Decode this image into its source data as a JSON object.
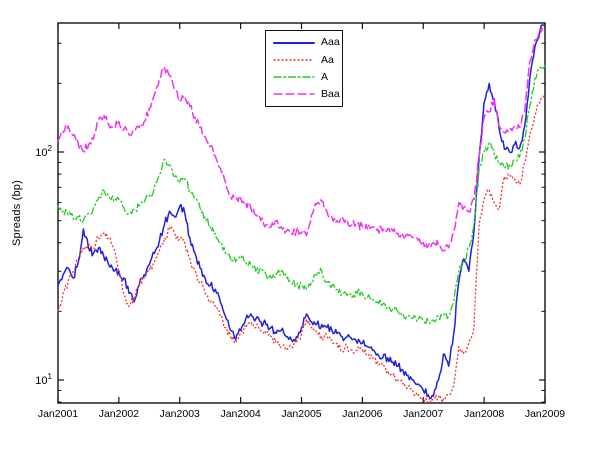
{
  "chart_data": {
    "type": "line",
    "title": "",
    "xlabel": "",
    "ylabel": "Spreads (bp)",
    "yscale": "log",
    "ylim": [
      8,
      370
    ],
    "grid": false,
    "legend_position": "upper-right-inside",
    "x_unit": "monthly, Jan2001 - Jan2009",
    "x_tick_labels": [
      "Jan2001",
      "Jan2002",
      "Jan2003",
      "Jan2004",
      "Jan2005",
      "Jan2006",
      "Jan2007",
      "Jan2008",
      "Jan2009"
    ],
    "y_major_ticks": [
      10,
      100
    ],
    "y_major_tick_labels": [
      {
        "base": "10",
        "exp": "1",
        "value": 10
      },
      {
        "base": "10",
        "exp": "2",
        "value": 100
      }
    ],
    "y_minor_ticks": [
      8,
      9,
      20,
      30,
      40,
      50,
      60,
      70,
      80,
      90,
      200,
      300
    ],
    "series": [
      {
        "name": "Aaa",
        "color": "#2020dd",
        "line_style": "solid",
        "values": [
          26,
          29,
          31,
          28,
          33,
          46,
          38,
          36,
          38,
          35,
          32,
          30,
          30,
          28,
          24,
          22,
          26,
          29,
          32,
          36,
          41,
          48,
          55,
          52,
          58,
          54,
          42,
          36,
          31,
          28,
          26,
          25,
          22,
          19,
          16.5,
          15,
          16.5,
          18.5,
          19.5,
          18.5,
          18,
          17.5,
          17,
          16,
          16.5,
          15.5,
          15,
          15.5,
          17,
          19.5,
          18,
          17.5,
          17.5,
          17,
          16.5,
          16,
          15.5,
          15.5,
          15,
          14.5,
          14.5,
          14,
          13.5,
          13,
          12.5,
          12.5,
          12,
          11.5,
          11,
          10.5,
          10,
          9.6,
          9,
          8.6,
          8.5,
          10,
          13,
          11.5,
          16,
          27,
          34,
          30,
          45,
          95,
          165,
          200,
          170,
          125,
          103,
          100,
          108,
          104,
          130,
          210,
          290,
          340,
          360
        ]
      },
      {
        "name": "Aa",
        "color": "#ee3333",
        "line_style": "dotted",
        "values": [
          20,
          24,
          27,
          30,
          34,
          38,
          40,
          38,
          42,
          44,
          42,
          38,
          30,
          24,
          21,
          23,
          26,
          28,
          30,
          33,
          37,
          42,
          46,
          44,
          42,
          40,
          34,
          30,
          27,
          24,
          22,
          21,
          19,
          17,
          15.5,
          14.5,
          16,
          17,
          17.5,
          17,
          16.5,
          16,
          15.5,
          14.5,
          14,
          13.5,
          14,
          14.5,
          16,
          18.5,
          17,
          16,
          15.5,
          15.5,
          15,
          14.5,
          13.5,
          14,
          13.5,
          13.5,
          13.5,
          13,
          12.5,
          12,
          11.5,
          11,
          10.5,
          10,
          9.6,
          9.2,
          8.9,
          8.6,
          8.3,
          8.1,
          8.2,
          8.4,
          8.3,
          8.6,
          9.5,
          14,
          13,
          14.5,
          17,
          48,
          62,
          68,
          60,
          56,
          78,
          80,
          76,
          72,
          90,
          120,
          145,
          165,
          172
        ]
      },
      {
        "name": "A",
        "color": "#22cc22",
        "line_style": "dashdot",
        "values": [
          58,
          55,
          53,
          51,
          52,
          50,
          54,
          57,
          63,
          68,
          64,
          61,
          62,
          57,
          54,
          56,
          58,
          60,
          64,
          70,
          80,
          93,
          88,
          78,
          74,
          76,
          68,
          62,
          57,
          52,
          47,
          44,
          40,
          36,
          34,
          33,
          34,
          33,
          32,
          30,
          31,
          29,
          28,
          29,
          30,
          28,
          27,
          26,
          26,
          25,
          27,
          29,
          30,
          27,
          26,
          25,
          24,
          23.5,
          23,
          24,
          24,
          23,
          22.5,
          22,
          21.5,
          21,
          20.5,
          20,
          19.5,
          19,
          18.7,
          18.4,
          18.2,
          18,
          18.3,
          19,
          19.5,
          19,
          22,
          30,
          33,
          38,
          48,
          85,
          100,
          110,
          98,
          90,
          85,
          88,
          92,
          95,
          115,
          160,
          210,
          235,
          240
        ]
      },
      {
        "name": "Baa",
        "color": "#ee33ee",
        "line_style": "dashed",
        "values": [
          112,
          122,
          130,
          118,
          108,
          101,
          107,
          114,
          138,
          146,
          132,
          128,
          136,
          126,
          119,
          123,
          128,
          136,
          155,
          178,
          210,
          234,
          216,
          188,
          168,
          175,
          158,
          142,
          128,
          117,
          106,
          96,
          85,
          74,
          64,
          62,
          63,
          60,
          57,
          53,
          50,
          48,
          47,
          50,
          47,
          45,
          44,
          45,
          44,
          43,
          53,
          59,
          61,
          55,
          52,
          50,
          52,
          50,
          48,
          48,
          47,
          46,
          47,
          46,
          45,
          46,
          45,
          44,
          43,
          43,
          42,
          41,
          40,
          39,
          40,
          39,
          37,
          38,
          45,
          60,
          57,
          55,
          62,
          95,
          142,
          150,
          172,
          130,
          122,
          125,
          130,
          128,
          150,
          250,
          310,
          345,
          355
        ]
      }
    ]
  }
}
